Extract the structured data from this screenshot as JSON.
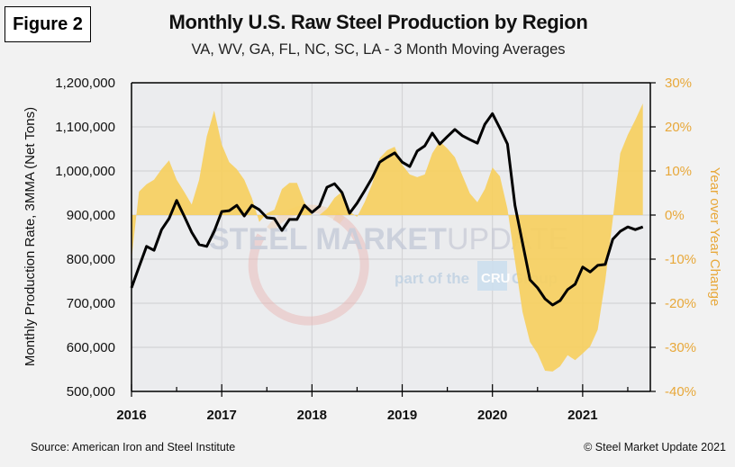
{
  "figure_label": "Figure 2",
  "footer": {
    "source": "Source: American Iron and Steel Institute",
    "copyright": "© Steel Market Update 2021"
  },
  "watermark": {
    "brand_bold": "STEEL MARKET",
    "brand_light": "UPDATE",
    "tagline_pre": "part of the",
    "tagline_badge": "CRU",
    "tagline_post": "Group"
  },
  "colors": {
    "line": "#000000",
    "area": "#f7cf5c",
    "right_axis": "#e8a83a",
    "plot_bg": "#ebecee",
    "grid": "#d4d4d6"
  },
  "chart_data": {
    "type": "line+area",
    "title": "Monthly U.S. Raw Steel Production by Region",
    "subtitle": "VA, WV, GA, FL, NC, SC, LA - 3 Month Moving Averages",
    "xlabel": "",
    "ylabel_left": "Monthly Production Rate, 3MMA (Net Tons)",
    "ylabel_right": "Year over Year Change",
    "x_ticks": [
      "2016",
      "2017",
      "2018",
      "2019",
      "2020",
      "2021"
    ],
    "x_start": "2016-01",
    "x_range_years": [
      2016,
      2021.75
    ],
    "ylim_left": [
      500000,
      1200000
    ],
    "yticks_left": [
      "500,000",
      "600,000",
      "700,000",
      "800,000",
      "900,000",
      "1,000,000",
      "1,100,000",
      "1,200,000"
    ],
    "ylim_right": [
      -40,
      30
    ],
    "yticks_right": [
      "-40%",
      "-30%",
      "-20%",
      "-10%",
      "0%",
      "10%",
      "20%",
      "30%"
    ],
    "grid": true,
    "months": [
      "2016-01",
      "2016-02",
      "2016-03",
      "2016-04",
      "2016-05",
      "2016-06",
      "2016-07",
      "2016-08",
      "2016-09",
      "2016-10",
      "2016-11",
      "2016-12",
      "2017-01",
      "2017-02",
      "2017-03",
      "2017-04",
      "2017-05",
      "2017-06",
      "2017-07",
      "2017-08",
      "2017-09",
      "2017-10",
      "2017-11",
      "2017-12",
      "2018-01",
      "2018-02",
      "2018-03",
      "2018-04",
      "2018-05",
      "2018-06",
      "2018-07",
      "2018-08",
      "2018-09",
      "2018-10",
      "2018-11",
      "2018-12",
      "2019-01",
      "2019-02",
      "2019-03",
      "2019-04",
      "2019-05",
      "2019-06",
      "2019-07",
      "2019-08",
      "2019-09",
      "2019-10",
      "2019-11",
      "2019-12",
      "2020-01",
      "2020-02",
      "2020-03",
      "2020-04",
      "2020-05",
      "2020-06",
      "2020-07",
      "2020-08",
      "2020-09",
      "2020-10",
      "2020-11",
      "2020-12",
      "2021-01",
      "2021-02",
      "2021-03",
      "2021-04",
      "2021-05",
      "2021-06",
      "2021-07",
      "2021-08",
      "2021-09"
    ],
    "series": [
      {
        "name": "Production 3MMA (Net Tons)",
        "axis": "left",
        "kind": "line",
        "values": [
          735000,
          782000,
          829000,
          820000,
          867000,
          892000,
          933000,
          898000,
          861000,
          833000,
          829000,
          863000,
          908000,
          910000,
          922000,
          898000,
          922000,
          912000,
          894000,
          892000,
          865000,
          890000,
          890000,
          922000,
          906000,
          920000,
          963000,
          971000,
          951000,
          904000,
          927000,
          955000,
          984000,
          1020000,
          1031000,
          1041000,
          1020000,
          1010000,
          1045000,
          1057000,
          1086000,
          1061000,
          1078000,
          1094000,
          1080000,
          1071000,
          1063000,
          1106000,
          1130000,
          1097000,
          1061000,
          922000,
          837000,
          753000,
          735000,
          710000,
          696000,
          706000,
          731000,
          743000,
          782000,
          771000,
          786000,
          788000,
          845000,
          863000,
          873000,
          867000,
          873000
        ]
      },
      {
        "name": "Year over Year Change (%)",
        "axis": "right",
        "kind": "area",
        "values": [
          -10,
          5.3,
          7,
          8,
          10.4,
          12.4,
          8,
          5.3,
          2.4,
          8,
          17.8,
          23.7,
          16,
          12,
          10.4,
          8,
          3.9,
          -1.6,
          0.4,
          1.2,
          5.9,
          7.3,
          7.3,
          2.9,
          0,
          0,
          1.4,
          3.9,
          5.3,
          0.8,
          -0.4,
          2.9,
          7,
          12.9,
          14.7,
          15.5,
          11.4,
          9.2,
          8.6,
          9.2,
          14,
          16.7,
          15.1,
          13.1,
          9,
          4.9,
          2.9,
          5.9,
          10.8,
          8.8,
          1.4,
          -10.4,
          -22,
          -28.8,
          -31.4,
          -35.3,
          -35.5,
          -34.3,
          -31.8,
          -32.9,
          -31.4,
          -29.8,
          -26,
          -15,
          -1,
          14,
          18.2,
          21.6,
          25.3
        ]
      }
    ]
  }
}
